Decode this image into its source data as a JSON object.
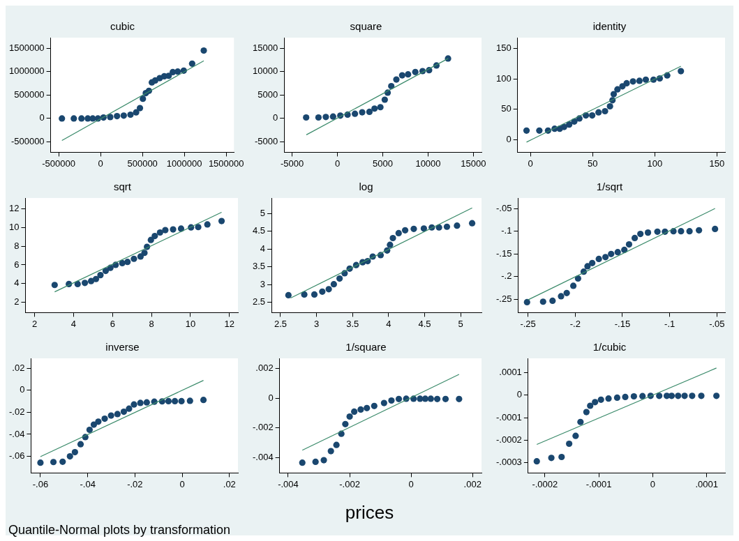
{
  "chart_data": [
    {
      "type": "scatter",
      "title": "cubic",
      "xlim": [
        -596000,
        1592000
      ],
      "ylim": [
        -722000,
        1725000
      ],
      "xticks": [
        -500000,
        0,
        500000,
        1000000,
        1500000
      ],
      "yticks": [
        -500000,
        0,
        500000,
        1000000,
        1500000
      ],
      "grid": false,
      "legend": false,
      "marker": "circle",
      "series": [
        {
          "type": "scatter",
          "color": "#1a476f",
          "x": [
            -461700,
            -319500,
            -228200,
            -153000,
            -94000,
            -32000,
            35000,
            115000,
            196000,
            276500,
            357000,
            424000,
            470000,
            505000,
            540000,
            577000,
            612000,
            652000,
            706000,
            760000,
            813000,
            862000,
            921000,
            993000,
            1093000,
            1232000
          ],
          "values": [
            0,
            0,
            0,
            0,
            0,
            0,
            20000,
            30000,
            50000,
            60000,
            80000,
            130000,
            220000,
            420000,
            540000,
            590000,
            770000,
            810000,
            860000,
            900000,
            910000,
            990000,
            1000000,
            1020000,
            1170000,
            1450000
          ]
        },
        {
          "type": "line",
          "color": "#3a8a6a",
          "marker": "none",
          "x": [
            -461700,
            1232000
          ],
          "values": [
            -470000,
            1230000
          ]
        }
      ]
    },
    {
      "type": "scatter",
      "title": "square",
      "xlim": [
        -5880,
        15890
      ],
      "ylim": [
        -7230,
        17250
      ],
      "xticks": [
        -5000,
        0,
        5000,
        10000,
        15000
      ],
      "yticks": [
        -5000,
        0,
        5000,
        10000,
        15000
      ],
      "grid": false,
      "legend": false,
      "marker": "circle",
      "series": [
        {
          "type": "scatter",
          "color": "#1a476f",
          "x": [
            -3450,
            -2090,
            -1280,
            -480,
            320,
            1120,
            1930,
            2730,
            3530,
            4090,
            4740,
            5220,
            5540,
            5940,
            6500,
            7140,
            7790,
            8590,
            9390,
            10110,
            10920,
            12200
          ],
          "values": [
            200,
            200,
            300,
            400,
            600,
            800,
            1000,
            1300,
            1400,
            2100,
            2400,
            4000,
            5500,
            6900,
            8300,
            9200,
            9400,
            9900,
            10100,
            10300,
            11300,
            12800
          ]
        },
        {
          "type": "line",
          "color": "#3a8a6a",
          "marker": "none",
          "x": [
            -3430,
            12220
          ],
          "values": [
            -3500,
            12800
          ]
        }
      ]
    },
    {
      "type": "scatter",
      "title": "identity",
      "xlim": [
        -10.3,
        156.5
      ],
      "ylim": [
        -20.7,
        168.2
      ],
      "xticks": [
        0,
        50,
        100,
        150
      ],
      "yticks": [
        0,
        50,
        100,
        150
      ],
      "grid": false,
      "legend": false,
      "marker": "circle",
      "series": [
        {
          "type": "scatter",
          "color": "#1a476f",
          "x": [
            -3.1,
            7.2,
            14.2,
            19.5,
            23.6,
            27.1,
            31.2,
            35.3,
            39.4,
            44.6,
            49.7,
            54.8,
            60,
            64,
            66,
            67,
            70,
            74,
            77.4,
            82.5,
            87.7,
            92.8,
            99,
            104,
            110,
            121
          ],
          "values": [
            15,
            15,
            15,
            18,
            18,
            21,
            25,
            30,
            35,
            40,
            40,
            45,
            47,
            55,
            65,
            75,
            83,
            88,
            93,
            96,
            97,
            99,
            99,
            101,
            106,
            113
          ]
        },
        {
          "type": "line",
          "color": "#3a8a6a",
          "marker": "none",
          "x": [
            -3.1,
            121
          ],
          "values": [
            -4,
            121
          ]
        }
      ]
    },
    {
      "type": "scatter",
      "title": "sqrt",
      "xlim": [
        1.53,
        12.44
      ],
      "ylim": [
        0.87,
        13.19
      ],
      "xticks": [
        2,
        4,
        6,
        8,
        10,
        12
      ],
      "yticks": [
        2,
        4,
        6,
        8,
        10,
        12
      ],
      "grid": false,
      "legend": false,
      "marker": "circle",
      "series": [
        {
          "type": "scatter",
          "color": "#1a476f",
          "x": [
            3.03,
            3.76,
            4.21,
            4.58,
            4.9,
            5.15,
            5.38,
            5.65,
            5.89,
            6.16,
            6.5,
            6.77,
            7.1,
            7.44,
            7.64,
            7.77,
            7.97,
            8.17,
            8.44,
            8.71,
            9.11,
            9.52,
            10.03,
            10.4,
            10.87,
            11.6
          ],
          "values": [
            3.84,
            3.94,
            3.94,
            4.06,
            4.26,
            4.48,
            4.9,
            5.35,
            5.68,
            6,
            6.19,
            6.32,
            6.65,
            6.9,
            7.29,
            7.94,
            8.68,
            9.1,
            9.48,
            9.74,
            9.81,
            9.9,
            10.03,
            10.06,
            10.35,
            10.71
          ]
        },
        {
          "type": "line",
          "color": "#3a8a6a",
          "marker": "none",
          "x": [
            3.03,
            11.6
          ],
          "values": [
            3.1,
            11.65
          ]
        }
      ]
    },
    {
      "type": "scatter",
      "title": "log",
      "xlim": [
        2.375,
        5.29
      ],
      "ylim": [
        2.21,
        5.44
      ],
      "xticks": [
        2.5,
        3,
        3.5,
        4,
        4.5,
        5
      ],
      "yticks": [
        2.5,
        3,
        3.5,
        4,
        4.5,
        5
      ],
      "grid": false,
      "legend": false,
      "marker": "circle",
      "series": [
        {
          "type": "scatter",
          "color": "#1a476f",
          "x": [
            2.61,
            2.83,
            2.97,
            3.08,
            3.17,
            3.24,
            3.32,
            3.39,
            3.46,
            3.55,
            3.64,
            3.71,
            3.78,
            3.89,
            3.98,
            4.02,
            4.06,
            4.14,
            4.23,
            4.35,
            4.49,
            4.6,
            4.7,
            4.81,
            4.95,
            5.16
          ],
          "values": [
            2.7,
            2.72,
            2.72,
            2.8,
            2.87,
            3.01,
            3.17,
            3.32,
            3.45,
            3.55,
            3.63,
            3.66,
            3.79,
            3.83,
            3.96,
            4.12,
            4.31,
            4.45,
            4.53,
            4.57,
            4.58,
            4.61,
            4.61,
            4.63,
            4.66,
            4.73
          ]
        },
        {
          "type": "line",
          "color": "#3a8a6a",
          "marker": "none",
          "x": [
            2.64,
            5.16
          ],
          "values": [
            2.62,
            5.16
          ]
        }
      ]
    },
    {
      "type": "scatter",
      "title": "1/sqrt",
      "xlim": [
        -0.2605,
        -0.0414
      ],
      "ylim": [
        -0.279,
        -0.0269
      ],
      "xticks": [
        {
          "value": -0.25,
          "label": "-.25"
        },
        {
          "value": -0.2,
          "label": "-.2"
        },
        {
          "value": -0.15,
          "label": "-.15"
        },
        {
          "value": -0.1,
          "label": "-.1"
        },
        {
          "value": -0.05,
          "label": "-.05"
        }
      ],
      "yticks": [
        {
          "value": -0.25,
          "label": "-.25"
        },
        {
          "value": -0.2,
          "label": "-.2"
        },
        {
          "value": -0.15,
          "label": "-.15"
        },
        {
          "value": -0.1,
          "label": "-.1"
        },
        {
          "value": -0.05,
          "label": "-.05"
        }
      ],
      "grid": false,
      "legend": false,
      "marker": "circle",
      "series": [
        {
          "type": "scatter",
          "color": "#1a476f",
          "x": [
            -0.251,
            -0.234,
            -0.224,
            -0.215,
            -0.209,
            -0.202,
            -0.197,
            -0.191,
            -0.187,
            -0.182,
            -0.175,
            -0.168,
            -0.162,
            -0.155,
            -0.148,
            -0.143,
            -0.137,
            -0.131,
            -0.123,
            -0.113,
            -0.105,
            -0.096,
            -0.088,
            -0.079,
            -0.069,
            -0.052
          ],
          "values": [
            -0.256,
            -0.255,
            -0.253,
            -0.243,
            -0.236,
            -0.22,
            -0.204,
            -0.189,
            -0.177,
            -0.17,
            -0.161,
            -0.157,
            -0.15,
            -0.146,
            -0.141,
            -0.129,
            -0.115,
            -0.106,
            -0.103,
            -0.101,
            -0.101,
            -0.1,
            -0.1,
            -0.1,
            -0.098,
            -0.095
          ]
        },
        {
          "type": "line",
          "color": "#3a8a6a",
          "marker": "none",
          "x": [
            -0.25,
            -0.052
          ],
          "values": [
            -0.251,
            -0.05
          ]
        }
      ]
    },
    {
      "type": "scatter",
      "title": "inverse",
      "xlim": [
        -0.064,
        0.0236
      ],
      "ylim": [
        -0.0751,
        0.029
      ],
      "xticks": [
        {
          "value": -0.06,
          "label": "-.06"
        },
        {
          "value": -0.04,
          "label": "-.04"
        },
        {
          "value": -0.02,
          "label": "-.02"
        },
        0,
        {
          "value": 0.02,
          "label": ".02"
        }
      ],
      "yticks": [
        {
          "value": -0.06,
          "label": "-.06"
        },
        {
          "value": -0.04,
          "label": "-.04"
        },
        {
          "value": -0.02,
          "label": "-.02"
        },
        0,
        {
          "value": 0.02,
          "label": ".02"
        }
      ],
      "grid": false,
      "legend": false,
      "marker": "circle",
      "annotations": [
        "Quantile-Normal plots by transformation"
      ],
      "series": [
        {
          "type": "scatter",
          "color": "#1a476f",
          "x": [
            -0.06,
            -0.0545,
            -0.0506,
            -0.0475,
            -0.0454,
            -0.043,
            -0.041,
            -0.0392,
            -0.0374,
            -0.0355,
            -0.0328,
            -0.0301,
            -0.0274,
            -0.0247,
            -0.0225,
            -0.0204,
            -0.0177,
            -0.015,
            -0.0118,
            -0.0085,
            -0.0058,
            -0.0031,
            -0.0003,
            0.0033,
            0.009
          ],
          "values": [
            -0.0658,
            -0.0652,
            -0.0649,
            -0.06,
            -0.0562,
            -0.049,
            -0.0425,
            -0.0359,
            -0.0312,
            -0.0285,
            -0.0258,
            -0.023,
            -0.0216,
            -0.0195,
            -0.0167,
            -0.0129,
            -0.0115,
            -0.011,
            -0.0104,
            -0.0101,
            -0.0099,
            -0.0099,
            -0.0099,
            -0.0096,
            -0.0088
          ]
        },
        {
          "type": "line",
          "color": "#3a8a6a",
          "marker": "none",
          "x": [
            -0.06,
            0.009
          ],
          "values": [
            -0.0603,
            0.009
          ]
        }
      ]
    },
    {
      "type": "scatter",
      "title": "1/square",
      "xlabel": "prices",
      "xlim": [
        -0.00428,
        0.00229
      ],
      "ylim": [
        -0.00504,
        0.00268
      ],
      "xticks": [
        {
          "value": -0.004,
          "label": "-.004"
        },
        {
          "value": -0.002,
          "label": "-.002"
        },
        0,
        {
          "value": 0.002,
          "label": ".002"
        }
      ],
      "yticks": [
        {
          "value": -0.004,
          "label": "-.004"
        },
        {
          "value": -0.002,
          "label": "-.002"
        },
        0,
        {
          "value": 0.002,
          "label": ".002"
        }
      ],
      "grid": false,
      "legend": false,
      "marker": "circle",
      "series": [
        {
          "type": "scatter",
          "color": "#1a476f",
          "x": [
            -0.00354,
            -0.00311,
            -0.00284,
            -0.00261,
            -0.00243,
            -0.00227,
            -0.00214,
            -0.002,
            -0.00185,
            -0.00164,
            -0.00144,
            -0.0012,
            -0.00088,
            -0.00064,
            -0.0004,
            -0.00016,
            8e-05,
            0.00029,
            0.00046,
            0.00064,
            0.00085,
            0.00112,
            0.00156
          ],
          "values": [
            -0.00435,
            -0.00429,
            -0.00418,
            -0.00357,
            -0.00315,
            -0.0024,
            -0.00175,
            -0.00124,
            -0.00091,
            -0.00077,
            -0.00067,
            -0.00053,
            -0.00033,
            -0.00016,
            -6e-05,
            -4e-05,
            -4e-05,
            -4e-05,
            -4e-05,
            -4e-05,
            -6e-05,
            -6e-05,
            -6e-05
          ]
        },
        {
          "type": "line",
          "color": "#3a8a6a",
          "marker": "none",
          "x": [
            -0.00354,
            0.00156
          ],
          "values": [
            -0.00351,
            0.0016
          ]
        }
      ]
    },
    {
      "type": "scatter",
      "title": "1/cubic",
      "xlim": [
        -0.000231,
        0.000134
      ],
      "ylim": [
        -0.000346,
        0.000164
      ],
      "xticks": [
        {
          "value": -0.0002,
          "label": "-.0002"
        },
        {
          "value": -0.0001,
          "label": "-.0001"
        },
        0,
        {
          "value": 0.0001,
          "label": ".0001"
        }
      ],
      "yticks": [
        {
          "value": -0.0003,
          "label": "-.0003"
        },
        {
          "value": -0.0002,
          "label": "-.0002"
        },
        {
          "value": -0.0001,
          "label": "-.0001"
        },
        0,
        {
          "value": 0.0001,
          "label": ".0001"
        }
      ],
      "grid": false,
      "legend": false,
      "marker": "circle",
      "series": [
        {
          "type": "scatter",
          "color": "#1a476f",
          "x": [
            -0.000215,
            -0.000188,
            -0.000169,
            -0.000155,
            -0.000143,
            -0.000134,
            -0.000123,
            -0.000116,
            -0.000107,
            -9.6e-05,
            -8.2e-05,
            -6.6e-05,
            -5.1e-05,
            -3.5e-05,
            -1.9e-05,
            -4e-06,
            1.2e-05,
            2.6e-05,
            3.5e-05,
            4.7e-05,
            5.9e-05,
            7.3e-05,
            9e-05,
            0.000118
          ],
          "values": [
            -0.000294,
            -0.000279,
            -0.000275,
            -0.000216,
            -0.000181,
            -0.000119,
            -7.5e-05,
            -4.7e-05,
            -3.1e-05,
            -2e-05,
            -1.5e-05,
            -1.1e-05,
            -8e-06,
            -5e-06,
            -4e-06,
            -3e-06,
            -3e-06,
            -3e-06,
            -3e-06,
            -3e-06,
            -3e-06,
            -3e-06,
            -3e-06,
            -3e-06
          ]
        },
        {
          "type": "line",
          "color": "#3a8a6a",
          "marker": "none",
          "x": [
            -0.000215,
            0.000118
          ],
          "values": [
            -0.000219,
            0.000121
          ]
        }
      ]
    }
  ]
}
